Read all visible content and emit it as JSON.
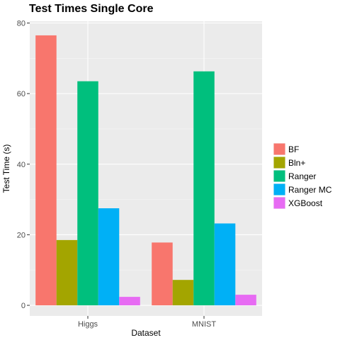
{
  "chart_data": {
    "type": "bar",
    "title": "Test Times Single Core",
    "xlabel": "Dataset",
    "ylabel": "Test Time (s)",
    "categories": [
      "Higgs",
      "MNIST"
    ],
    "ylim": [
      -3,
      80.5
    ],
    "yticks": [
      0,
      20,
      40,
      60,
      80
    ],
    "grid": true,
    "legend_position": "right",
    "series": [
      {
        "name": "BF",
        "color": "#F8766D",
        "values": [
          76.5,
          17.8
        ]
      },
      {
        "name": "Bln+",
        "color": "#A3A500",
        "values": [
          18.5,
          7.2
        ]
      },
      {
        "name": "Ranger",
        "color": "#00BF7D",
        "values": [
          63.5,
          66.3
        ]
      },
      {
        "name": "Ranger MC",
        "color": "#00B0F6",
        "values": [
          27.5,
          23.2
        ]
      },
      {
        "name": "XGBoost",
        "color": "#E76BF3",
        "values": [
          2.4,
          3.0
        ]
      }
    ]
  }
}
